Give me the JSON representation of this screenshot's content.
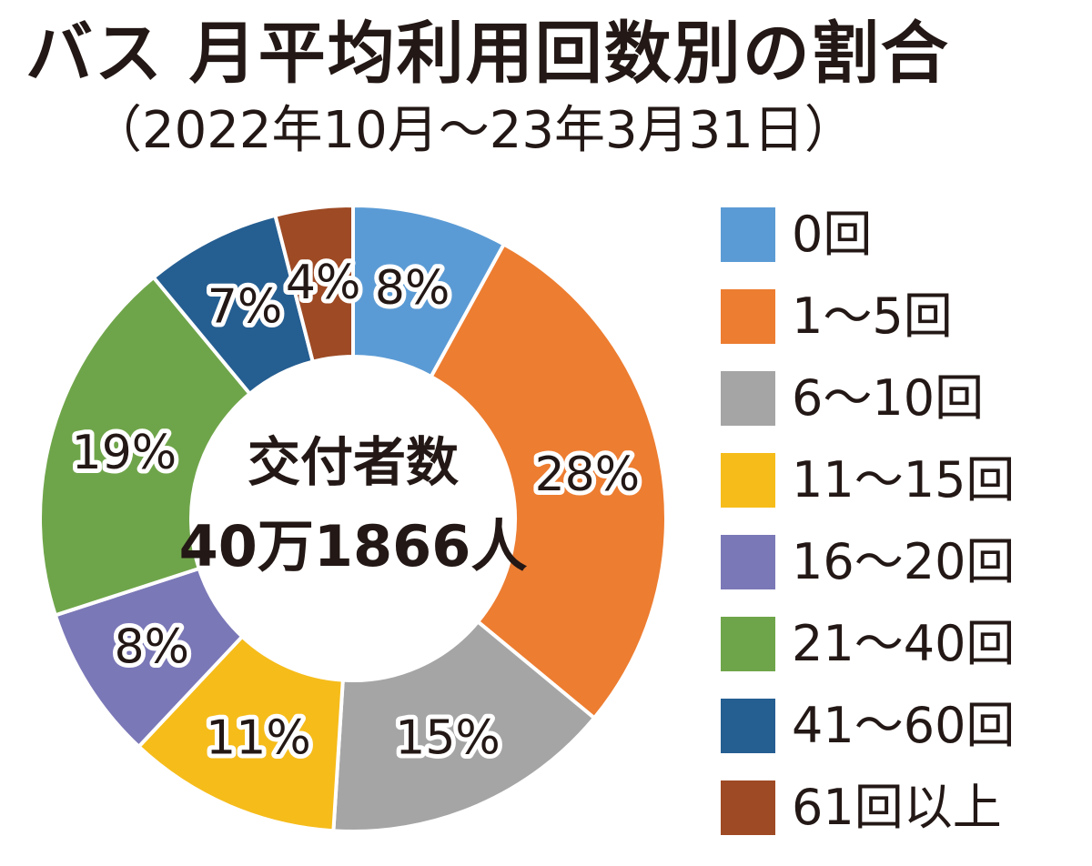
{
  "header": {
    "title": "バス 月平均利用回数別の割合",
    "subtitle": "（2022年10月〜23年3月31日）"
  },
  "center": {
    "line1": "交付者数",
    "line2": "40万1866人"
  },
  "chart_data": {
    "type": "pie",
    "title": "バス 月平均利用回数別の割合",
    "subtitle": "（2022年10月〜23年3月31日）",
    "donut": true,
    "unit": "%",
    "categories": [
      "0回",
      "1〜5回",
      "6〜10回",
      "11〜15回",
      "16〜20回",
      "21〜40回",
      "41〜60回",
      "61回以上"
    ],
    "values": [
      8,
      28,
      15,
      11,
      8,
      19,
      7,
      4
    ],
    "labels": [
      "8%",
      "28%",
      "15%",
      "11%",
      "8%",
      "19%",
      "7%",
      "4%"
    ],
    "colors": [
      "#5b9bd5",
      "#ed7d31",
      "#a5a5a5",
      "#f6bc1a",
      "#7b78b8",
      "#6fa54a",
      "#255e91",
      "#9e4a24"
    ],
    "legend_position": "right"
  }
}
